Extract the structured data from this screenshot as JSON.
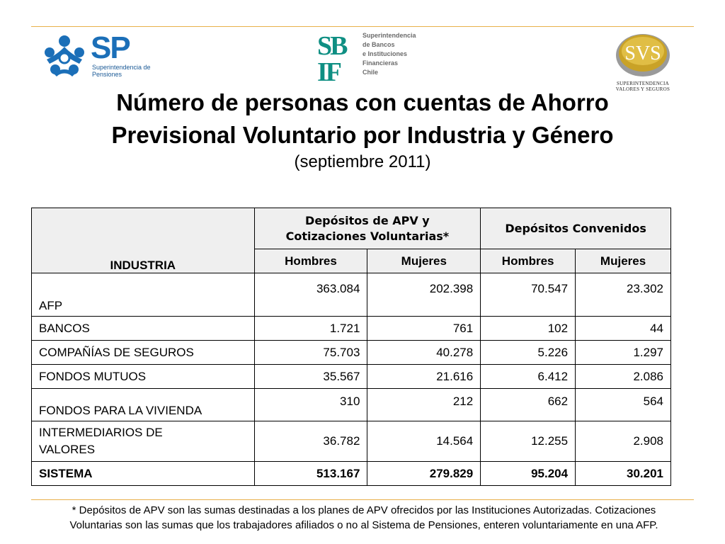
{
  "logos": {
    "sp": {
      "text": "SP",
      "subtitle": "Superintendencia de Pensiones",
      "color": "#1b6fb8"
    },
    "sbif": {
      "mark": "SBIF",
      "subtitle": [
        "Superintendencia",
        "de Bancos",
        "e Instituciones",
        "Financieras",
        "Chile"
      ]
    },
    "svs": {
      "mark": "SVS",
      "subtitle": [
        "SUPERINTENDENCIA",
        "VALORES Y SEGUROS"
      ]
    }
  },
  "title": {
    "line1": "Número de personas con cuentas de Ahorro",
    "line2": "Previsional Voluntario por Industria y Género",
    "subtitle": "(septiembre 2011)"
  },
  "table": {
    "header_industry": "INDUSTRIA",
    "group1": [
      "Depósitos de APV y",
      "Cotizaciones Voluntarias*"
    ],
    "group2": "Depósitos Convenidos",
    "subheaders": [
      "Hombres",
      "Mujeres",
      "Hombres",
      "Mujeres"
    ],
    "rows": [
      {
        "label": "AFP",
        "values": [
          "363.084",
          "202.398",
          "70.547",
          "23.302"
        ]
      },
      {
        "label": "BANCOS",
        "values": [
          "1.721",
          "761",
          "102",
          "44"
        ]
      },
      {
        "label": "COMPAÑÍAS DE SEGUROS",
        "values": [
          "75.703",
          "40.278",
          "5.226",
          "1.297"
        ]
      },
      {
        "label": "FONDOS MUTUOS",
        "values": [
          "35.567",
          "21.616",
          "6.412",
          "2.086"
        ]
      },
      {
        "label": "FONDOS PARA LA VIVIENDA",
        "values": [
          "310",
          "212",
          "662",
          "564"
        ]
      },
      {
        "label_lines": [
          "INTERMEDIARIOS DE",
          "VALORES"
        ],
        "values": [
          "36.782",
          "14.564",
          "12.255",
          "2.908"
        ]
      }
    ],
    "total": {
      "label": "SISTEMA",
      "values": [
        "513.167",
        "279.829",
        "95.204",
        "30.201"
      ]
    }
  },
  "footnote": {
    "line1": "* Depósitos de APV son las sumas destinadas a los planes de APV ofrecidos por las Instituciones Autorizadas. Cotizaciones",
    "line2": "Voluntarias son las sumas que los trabajadores afiliados o no al Sistema de Pensiones, enteren voluntariamente en una AFP."
  }
}
